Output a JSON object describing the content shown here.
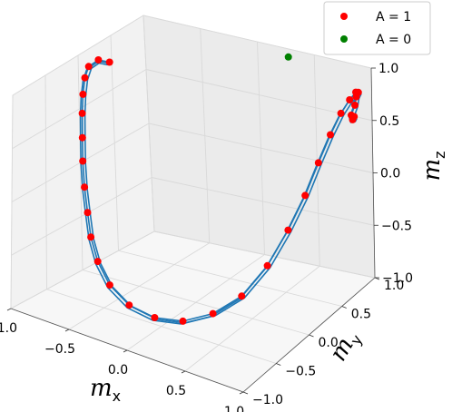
{
  "chart_data": {
    "type": "scatter",
    "projection": "3d",
    "grid": true,
    "legend_position": "top-right",
    "axes": {
      "x": {
        "label": "m",
        "sub": "x",
        "lim": [
          -1.0,
          1.0
        ],
        "ticks": [
          "−1.0",
          "−0.5",
          "0.0",
          "0.5",
          "1.0"
        ]
      },
      "y": {
        "label": "m",
        "sub": "y",
        "lim": [
          -1.0,
          1.0
        ],
        "ticks": [
          "−1.0",
          "−0.5",
          "0.0",
          "0.5",
          "1.0"
        ]
      },
      "z": {
        "label": "m",
        "sub": "z",
        "lim": [
          -1.0,
          1.0
        ],
        "ticks": [
          "−1.0",
          "−0.5",
          "0.0",
          "0.5",
          "1.0"
        ]
      }
    },
    "legend": [
      {
        "label": "A = 1",
        "color": "#ff0000"
      },
      {
        "label": "A = 0",
        "color": "#008000"
      }
    ],
    "line_color": "#1f77b4",
    "series": [
      {
        "name": "A = 1",
        "color": "#ff0000",
        "points": [
          {
            "x": -0.9,
            "y": 0.3,
            "z": 0.85
          },
          {
            "x": -0.88,
            "y": 0.1,
            "z": 0.95
          },
          {
            "x": -0.85,
            "y": -0.1,
            "z": 0.97
          },
          {
            "x": -0.78,
            "y": -0.28,
            "z": 0.95
          },
          {
            "x": -0.7,
            "y": -0.45,
            "z": 0.88
          },
          {
            "x": -0.62,
            "y": -0.6,
            "z": 0.78
          },
          {
            "x": -0.55,
            "y": -0.72,
            "z": 0.62
          },
          {
            "x": -0.5,
            "y": -0.8,
            "z": 0.45
          },
          {
            "x": -0.45,
            "y": -0.86,
            "z": 0.25
          },
          {
            "x": -0.4,
            "y": -0.9,
            "z": 0.05
          },
          {
            "x": -0.36,
            "y": -0.92,
            "z": -0.15
          },
          {
            "x": -0.3,
            "y": -0.92,
            "z": -0.35
          },
          {
            "x": -0.22,
            "y": -0.88,
            "z": -0.55
          },
          {
            "x": -0.1,
            "y": -0.8,
            "z": -0.72
          },
          {
            "x": 0.05,
            "y": -0.68,
            "z": -0.83
          },
          {
            "x": 0.2,
            "y": -0.52,
            "z": -0.88
          },
          {
            "x": 0.35,
            "y": -0.33,
            "z": -0.85
          },
          {
            "x": 0.48,
            "y": -0.12,
            "z": -0.75
          },
          {
            "x": 0.58,
            "y": 0.1,
            "z": -0.55
          },
          {
            "x": 0.65,
            "y": 0.3,
            "z": -0.3
          },
          {
            "x": 0.7,
            "y": 0.48,
            "z": -0.05
          },
          {
            "x": 0.74,
            "y": 0.62,
            "z": 0.2
          },
          {
            "x": 0.78,
            "y": 0.74,
            "z": 0.42
          },
          {
            "x": 0.83,
            "y": 0.82,
            "z": 0.6
          },
          {
            "x": 0.88,
            "y": 0.87,
            "z": 0.72
          },
          {
            "x": 0.93,
            "y": 0.88,
            "z": 0.8
          },
          {
            "x": 0.97,
            "y": 0.85,
            "z": 0.82
          },
          {
            "x": 0.98,
            "y": 0.8,
            "z": 0.8
          },
          {
            "x": 0.99,
            "y": 0.76,
            "z": 0.74
          },
          {
            "x": 0.98,
            "y": 0.72,
            "z": 0.66
          },
          {
            "x": 0.98,
            "y": 0.74,
            "z": 0.61
          },
          {
            "x": 0.97,
            "y": 0.78,
            "z": 0.62
          }
        ]
      },
      {
        "name": "A = 0",
        "color": "#008000",
        "points": [
          {
            "x": 0.3,
            "y": 0.95,
            "z": 0.95
          }
        ]
      }
    ]
  }
}
